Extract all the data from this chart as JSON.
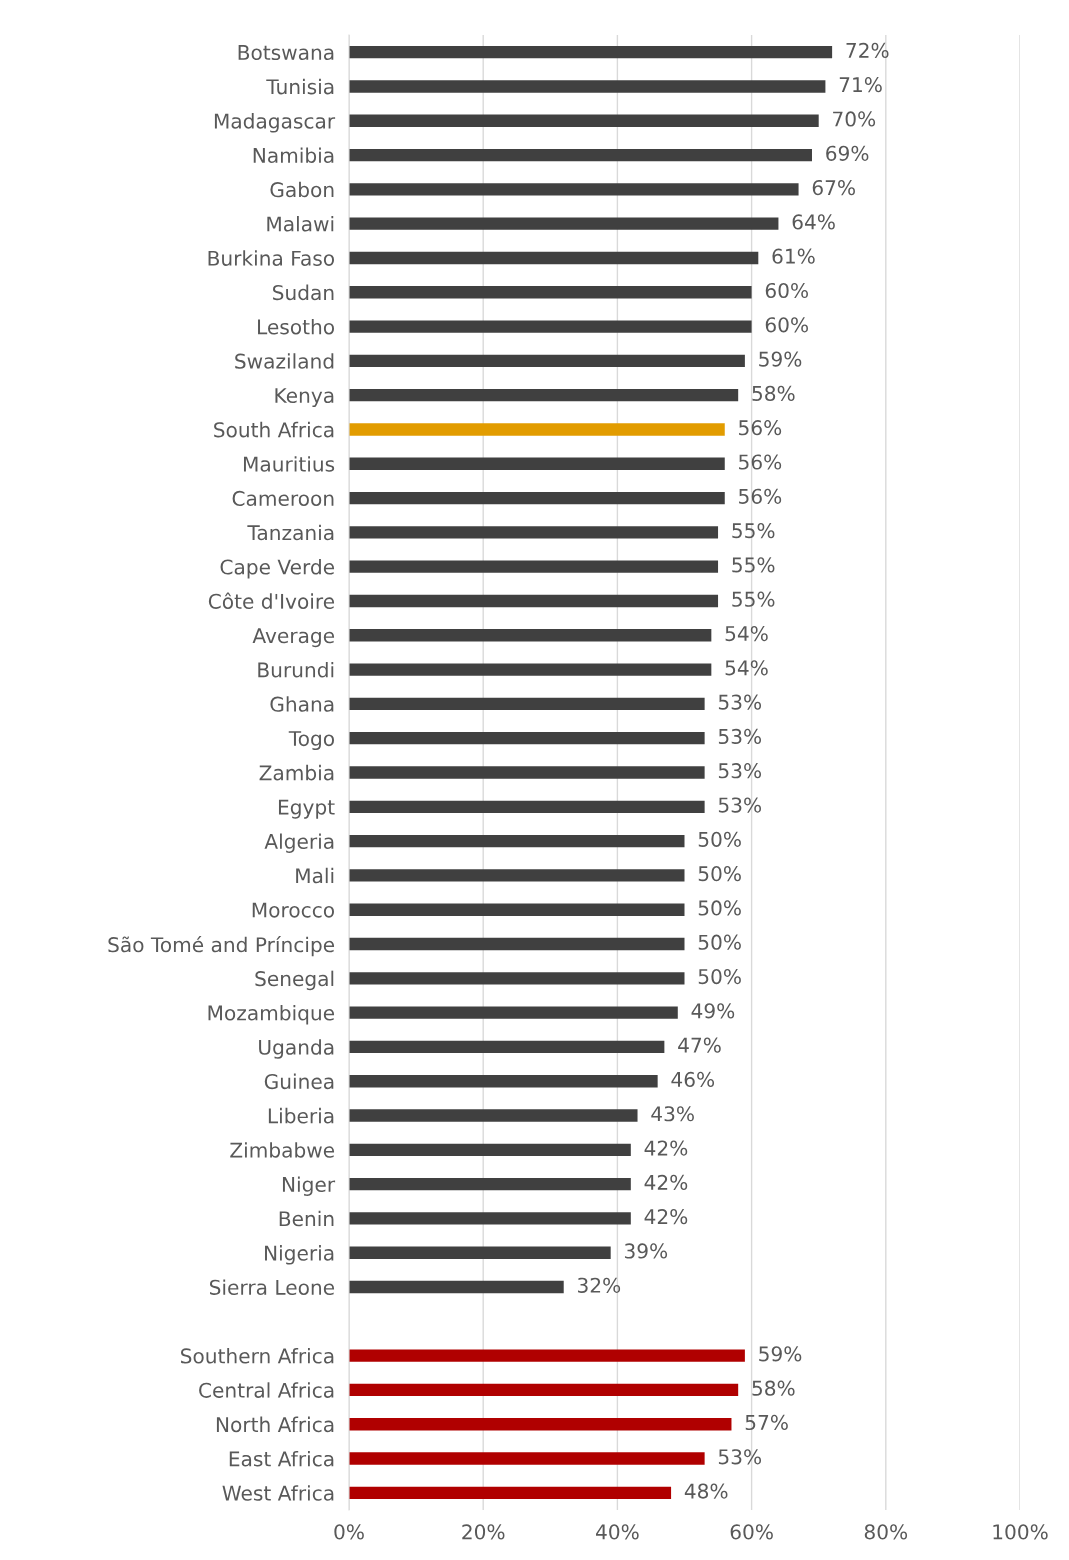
{
  "chart_data": {
    "type": "bar",
    "orientation": "horizontal",
    "categories": [
      "Botswana",
      "Tunisia",
      "Madagascar",
      "Namibia",
      "Gabon",
      "Malawi",
      "Burkina Faso",
      "Sudan",
      "Lesotho",
      "Swaziland",
      "Kenya",
      "South Africa",
      "Mauritius",
      "Cameroon",
      "Tanzania",
      "Cape Verde",
      "Côte d'Ivoire",
      "Average",
      "Burundi",
      "Ghana",
      "Togo",
      "Zambia",
      "Egypt",
      "Algeria",
      "Mali",
      "Morocco",
      "São Tomé and Príncipe",
      "Senegal",
      "Mozambique",
      "Uganda",
      "Guinea",
      "Liberia",
      "Zimbabwe",
      "Niger",
      "Benin",
      "Nigeria",
      "Sierra Leone",
      null,
      "Southern Africa",
      "Central Africa",
      "North Africa",
      "East Africa",
      "West Africa"
    ],
    "values": [
      72,
      71,
      70,
      69,
      67,
      64,
      61,
      60,
      60,
      59,
      58,
      56,
      56,
      56,
      55,
      55,
      55,
      54,
      54,
      53,
      53,
      53,
      53,
      50,
      50,
      50,
      50,
      50,
      49,
      47,
      46,
      43,
      42,
      42,
      42,
      39,
      32,
      null,
      59,
      58,
      57,
      53,
      48
    ],
    "value_labels": [
      "72%",
      "71%",
      "70%",
      "69%",
      "67%",
      "64%",
      "61%",
      "60%",
      "60%",
      "59%",
      "58%",
      "56%",
      "56%",
      "56%",
      "55%",
      "55%",
      "55%",
      "54%",
      "54%",
      "53%",
      "53%",
      "53%",
      "53%",
      "50%",
      "50%",
      "50%",
      "50%",
      "50%",
      "49%",
      "47%",
      "46%",
      "43%",
      "42%",
      "42%",
      "42%",
      "39%",
      "32%",
      null,
      "59%",
      "58%",
      "57%",
      "53%",
      "48%"
    ],
    "colors": [
      "#404040",
      "#404040",
      "#404040",
      "#404040",
      "#404040",
      "#404040",
      "#404040",
      "#404040",
      "#404040",
      "#404040",
      "#404040",
      "#e29c00",
      "#404040",
      "#404040",
      "#404040",
      "#404040",
      "#404040",
      "#404040",
      "#404040",
      "#404040",
      "#404040",
      "#404040",
      "#404040",
      "#404040",
      "#404040",
      "#404040",
      "#404040",
      "#404040",
      "#404040",
      "#404040",
      "#404040",
      "#404040",
      "#404040",
      "#404040",
      "#404040",
      "#404040",
      "#404040",
      null,
      "#b00000",
      "#b00000",
      "#b00000",
      "#b00000",
      "#b00000"
    ],
    "xlim": [
      0,
      100
    ],
    "xticks": [
      {
        "value": 0,
        "label": "0%"
      },
      {
        "value": 20,
        "label": "20%"
      },
      {
        "value": 40,
        "label": "40%"
      },
      {
        "value": 60,
        "label": "60%"
      },
      {
        "value": 80,
        "label": "80%"
      },
      {
        "value": 100,
        "label": "100%"
      }
    ],
    "grid": "x"
  }
}
